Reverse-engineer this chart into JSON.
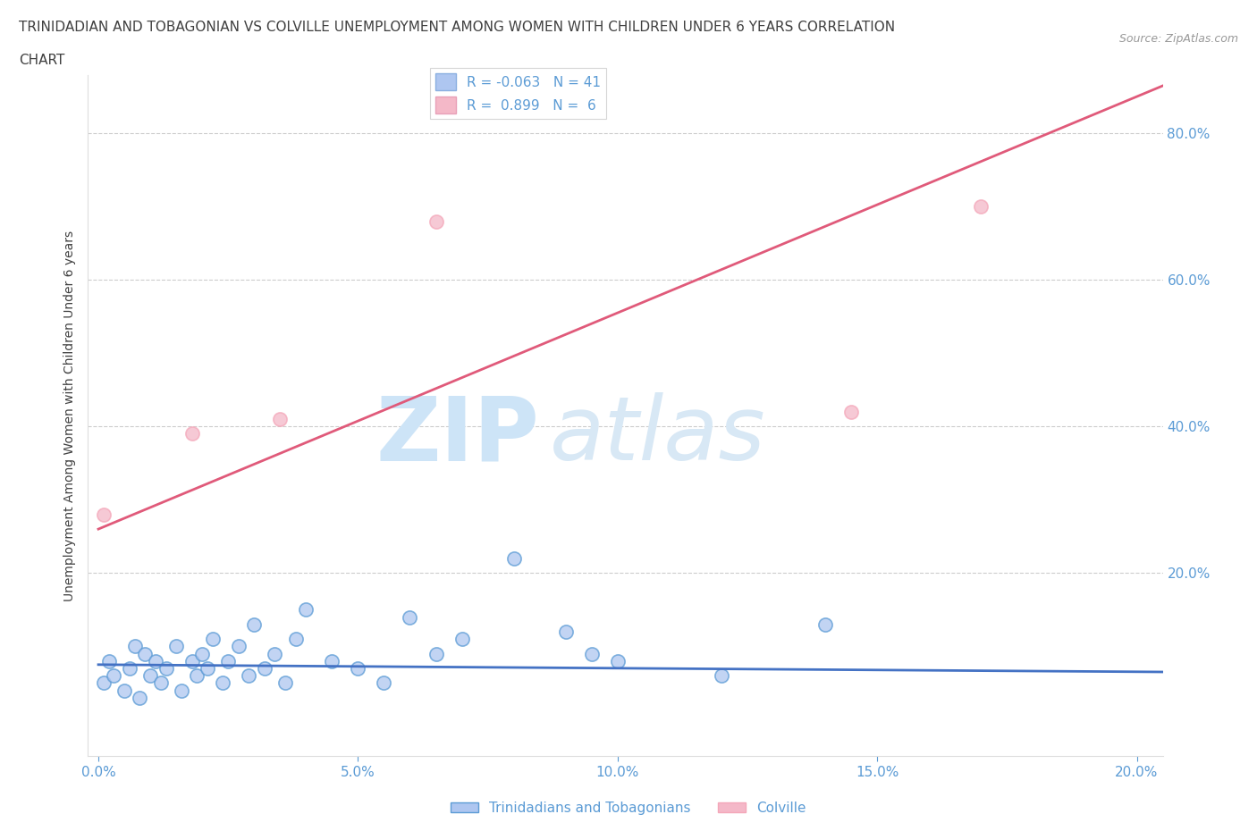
{
  "title_line1": "TRINIDADIAN AND TOBAGONIAN VS COLVILLE UNEMPLOYMENT AMONG WOMEN WITH CHILDREN UNDER 6 YEARS CORRELATION",
  "title_line2": "CHART",
  "source_text": "Source: ZipAtlas.com",
  "ylabel": "Unemployment Among Women with Children Under 6 years",
  "xlim": [
    -0.002,
    0.205
  ],
  "ylim": [
    -0.05,
    0.88
  ],
  "xticks": [
    0.0,
    0.05,
    0.1,
    0.15,
    0.2
  ],
  "xticklabels": [
    "0.0%",
    "5.0%",
    "10.0%",
    "15.0%",
    "20.0%"
  ],
  "yticks": [
    0.0,
    0.2,
    0.4,
    0.6,
    0.8
  ],
  "yticklabels": [
    "",
    "20.0%",
    "40.0%",
    "60.0%",
    "80.0%"
  ],
  "legend_items": [
    {
      "label": "R = -0.063   N = 41",
      "color": "#aec6f0"
    },
    {
      "label": "R =  0.899   N =  6",
      "color": "#f4b8c8"
    }
  ],
  "blue_color": "#5b9bd5",
  "pink_color": "#f4a7b9",
  "blue_scatter_color": "#aec6f0",
  "pink_scatter_color": "#f4b8c8",
  "blue_line_color": "#4472c4",
  "pink_line_color": "#e05a7a",
  "grid_color": "#cccccc",
  "title_color": "#404040",
  "axis_color": "#5b9bd5",
  "trinidadian_x": [
    0.001,
    0.002,
    0.003,
    0.005,
    0.006,
    0.007,
    0.008,
    0.009,
    0.01,
    0.011,
    0.012,
    0.013,
    0.015,
    0.016,
    0.018,
    0.019,
    0.02,
    0.021,
    0.022,
    0.024,
    0.025,
    0.027,
    0.029,
    0.03,
    0.032,
    0.034,
    0.036,
    0.038,
    0.04,
    0.045,
    0.05,
    0.055,
    0.06,
    0.065,
    0.07,
    0.08,
    0.09,
    0.095,
    0.1,
    0.12,
    0.14
  ],
  "trinidadian_y": [
    0.05,
    0.08,
    0.06,
    0.04,
    0.07,
    0.1,
    0.03,
    0.09,
    0.06,
    0.08,
    0.05,
    0.07,
    0.1,
    0.04,
    0.08,
    0.06,
    0.09,
    0.07,
    0.11,
    0.05,
    0.08,
    0.1,
    0.06,
    0.13,
    0.07,
    0.09,
    0.05,
    0.11,
    0.15,
    0.08,
    0.07,
    0.05,
    0.14,
    0.09,
    0.11,
    0.22,
    0.12,
    0.09,
    0.08,
    0.06,
    0.13
  ],
  "colville_x": [
    0.001,
    0.018,
    0.035,
    0.065,
    0.145,
    0.17
  ],
  "colville_y": [
    0.28,
    0.39,
    0.41,
    0.68,
    0.42,
    0.7
  ],
  "blue_trendline_x": [
    0.0,
    0.205
  ],
  "blue_trendline_y": [
    0.075,
    0.065
  ],
  "pink_trendline_x": [
    0.0,
    0.205
  ],
  "pink_trendline_y": [
    0.26,
    0.865
  ],
  "watermark_zip_color": "#c8dff5",
  "watermark_atlas_color": "#b8d4f0"
}
